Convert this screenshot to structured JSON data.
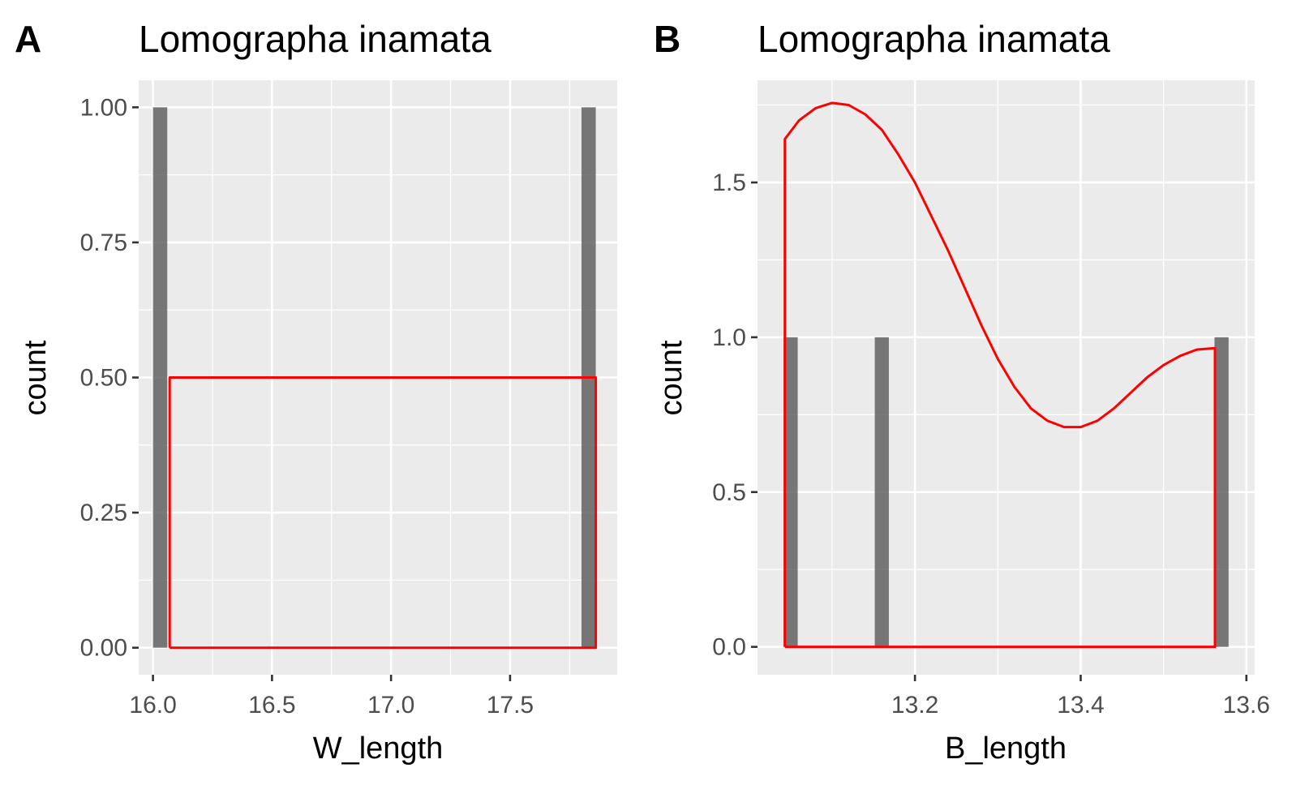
{
  "chart_data": [
    {
      "type": "bar",
      "tag": "A",
      "title": "Lomographa inamata",
      "xlabel": "W_length",
      "ylabel": "count",
      "xlim": [
        15.94,
        17.95
      ],
      "ylim": [
        -0.05,
        1.05
      ],
      "x_ticks": [
        {
          "value": 16.0,
          "label": "16.0"
        },
        {
          "value": 16.5,
          "label": "16.5"
        },
        {
          "value": 17.0,
          "label": "17.0"
        },
        {
          "value": 17.5,
          "label": "17.5"
        }
      ],
      "y_ticks": [
        {
          "value": 0.0,
          "label": "0.00"
        },
        {
          "value": 0.25,
          "label": "0.25"
        },
        {
          "value": 0.5,
          "label": "0.50"
        },
        {
          "value": 0.75,
          "label": "0.75"
        },
        {
          "value": 1.0,
          "label": "1.00"
        }
      ],
      "grid": true,
      "bar_width": 0.06,
      "bars": [
        {
          "x": 16.03,
          "count": 1
        },
        {
          "x": 17.83,
          "count": 1
        }
      ],
      "density_color": "#ff0000",
      "density": [
        [
          16.07,
          0.0
        ],
        [
          16.07,
          0.5
        ],
        [
          17.86,
          0.5
        ],
        [
          17.86,
          0.0
        ],
        [
          16.07,
          0.0
        ]
      ]
    },
    {
      "type": "bar",
      "tag": "B",
      "title": "Lomographa inamata",
      "xlabel": "B_length",
      "ylabel": "count",
      "xlim": [
        13.01,
        13.61
      ],
      "ylim": [
        -0.09,
        1.83
      ],
      "x_ticks": [
        {
          "value": 13.2,
          "label": "13.2"
        },
        {
          "value": 13.4,
          "label": "13.4"
        },
        {
          "value": 13.6,
          "label": "13.6"
        }
      ],
      "y_ticks": [
        {
          "value": 0.0,
          "label": "0.0"
        },
        {
          "value": 0.5,
          "label": "0.5"
        },
        {
          "value": 1.0,
          "label": "1.0"
        },
        {
          "value": 1.5,
          "label": "1.5"
        }
      ],
      "grid": true,
      "bar_width": 0.017,
      "bars": [
        {
          "x": 13.05,
          "count": 1
        },
        {
          "x": 13.16,
          "count": 1
        },
        {
          "x": 13.57,
          "count": 1
        }
      ],
      "density_color": "#ff0000",
      "density": [
        [
          13.043,
          0.0
        ],
        [
          13.043,
          1.64
        ],
        [
          13.06,
          1.7
        ],
        [
          13.08,
          1.74
        ],
        [
          13.1,
          1.757
        ],
        [
          13.12,
          1.75
        ],
        [
          13.14,
          1.72
        ],
        [
          13.16,
          1.67
        ],
        [
          13.18,
          1.59
        ],
        [
          13.2,
          1.5
        ],
        [
          13.22,
          1.39
        ],
        [
          13.24,
          1.28
        ],
        [
          13.26,
          1.16
        ],
        [
          13.28,
          1.04
        ],
        [
          13.3,
          0.93
        ],
        [
          13.32,
          0.84
        ],
        [
          13.34,
          0.77
        ],
        [
          13.36,
          0.73
        ],
        [
          13.38,
          0.71
        ],
        [
          13.4,
          0.71
        ],
        [
          13.42,
          0.73
        ],
        [
          13.44,
          0.77
        ],
        [
          13.46,
          0.82
        ],
        [
          13.48,
          0.87
        ],
        [
          13.5,
          0.91
        ],
        [
          13.52,
          0.94
        ],
        [
          13.54,
          0.96
        ],
        [
          13.562,
          0.965
        ],
        [
          13.562,
          0.0
        ],
        [
          13.043,
          0.0
        ]
      ]
    }
  ]
}
